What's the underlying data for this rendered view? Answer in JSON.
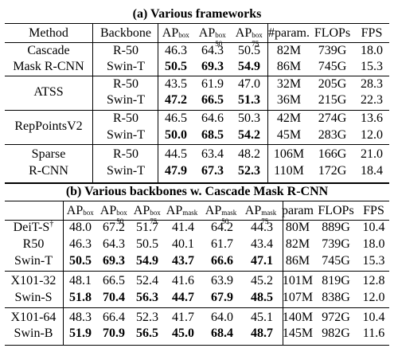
{
  "table_a": {
    "caption": "(a) Various frameworks",
    "headers": [
      "Method",
      "Backbone",
      "AP",
      "AP",
      "AP",
      "#param.",
      "FLOPs",
      "FPS"
    ],
    "header_sup": [
      "",
      "",
      "box",
      "box",
      "box",
      "",
      "",
      ""
    ],
    "header_sub": [
      "",
      "",
      "",
      "50",
      "75",
      "",
      "",
      ""
    ],
    "rows": [
      [
        "Cascade",
        "R-50",
        "46.3",
        "64.3",
        "50.5",
        "82M",
        "739G",
        "18.0"
      ],
      [
        "Mask R-CNN",
        "Swin-T",
        "50.5",
        "69.3",
        "54.9",
        "86M",
        "745G",
        "15.3"
      ],
      [
        "ATSS",
        "R-50",
        "43.5",
        "61.9",
        "47.0",
        "32M",
        "205G",
        "28.3"
      ],
      [
        "",
        "Swin-T",
        "47.2",
        "66.5",
        "51.3",
        "36M",
        "215G",
        "22.3"
      ],
      [
        "RepPointsV2",
        "R-50",
        "46.5",
        "64.6",
        "50.3",
        "42M",
        "274G",
        "13.6"
      ],
      [
        "",
        "Swin-T",
        "50.0",
        "68.5",
        "54.2",
        "45M",
        "283G",
        "12.0"
      ],
      [
        "Sparse",
        "R-50",
        "44.5",
        "63.4",
        "48.2",
        "106M",
        "166G",
        "21.0"
      ],
      [
        "R-CNN",
        "Swin-T",
        "47.9",
        "67.3",
        "52.3",
        "110M",
        "172G",
        "18.4"
      ]
    ]
  },
  "table_b": {
    "caption": "(b) Various backbones w. Cascade Mask R-CNN",
    "headers": [
      "",
      "AP",
      "AP",
      "AP",
      "AP",
      "AP",
      "AP",
      "param",
      "FLOPs",
      "FPS"
    ],
    "header_sup": [
      "",
      "box",
      "box",
      "box",
      "mask",
      "mask",
      "mask",
      "",
      "",
      ""
    ],
    "header_sub": [
      "",
      "",
      "50",
      "75",
      "",
      "50",
      "75",
      "",
      "",
      ""
    ],
    "rows": [
      [
        "DeiT-S",
        "48.0",
        "67.2",
        "51.7",
        "41.4",
        "64.2",
        "44.3",
        "80M",
        "889G",
        "10.4"
      ],
      [
        "R50",
        "46.3",
        "64.3",
        "50.5",
        "40.1",
        "61.7",
        "43.4",
        "82M",
        "739G",
        "18.0"
      ],
      [
        "Swin-T",
        "50.5",
        "69.3",
        "54.9",
        "43.7",
        "66.6",
        "47.1",
        "86M",
        "745G",
        "15.3"
      ],
      [
        "X101-32",
        "48.1",
        "66.5",
        "52.4",
        "41.6",
        "63.9",
        "45.2",
        "101M",
        "819G",
        "12.8"
      ],
      [
        "Swin-S",
        "51.8",
        "70.4",
        "56.3",
        "44.7",
        "67.9",
        "48.5",
        "107M",
        "838G",
        "12.0"
      ],
      [
        "X101-64",
        "48.3",
        "66.4",
        "52.3",
        "41.7",
        "64.0",
        "45.1",
        "140M",
        "972G",
        "10.4"
      ],
      [
        "Swin-B",
        "51.9",
        "70.9",
        "56.5",
        "45.0",
        "68.4",
        "48.7",
        "145M",
        "982G",
        "11.6"
      ]
    ],
    "deit_mark": "†"
  }
}
